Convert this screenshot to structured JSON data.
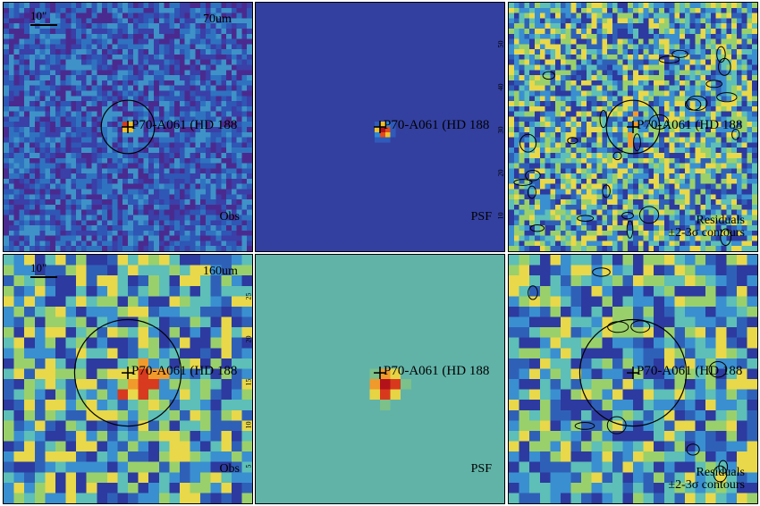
{
  "rows": [
    {
      "band": "70um",
      "scalebar": "10\"",
      "target_label": "P70-A061 (HD 188",
      "panels": [
        {
          "id": "obs",
          "corner_text": [
            "Obs"
          ],
          "palette": "obs70",
          "circle": true,
          "contours": false
        },
        {
          "id": "psf",
          "corner_text": [
            "PSF"
          ],
          "palette": "psf70",
          "circle": false,
          "contours": false,
          "ticks": [
            "10",
            "20",
            "30",
            "40",
            "50"
          ]
        },
        {
          "id": "res",
          "corner_text": [
            "Residuals",
            "±2-3σ contours"
          ],
          "palette": "res",
          "circle": true,
          "contours": true
        }
      ]
    },
    {
      "band": "160um",
      "scalebar": "10\"",
      "target_label": "P70-A061 (HD 188",
      "panels": [
        {
          "id": "obs",
          "corner_text": [
            "Obs"
          ],
          "palette": "res",
          "circle": true,
          "contours": false,
          "ticks": [
            "5",
            "10",
            "15",
            "20",
            "25"
          ]
        },
        {
          "id": "psf",
          "corner_text": [
            "PSF"
          ],
          "palette": "psf160",
          "circle": false,
          "contours": false
        },
        {
          "id": "res",
          "corner_text": [
            "Residuals",
            "±2-3σ contours"
          ],
          "palette": "res",
          "circle": true,
          "contours": true
        }
      ]
    }
  ],
  "colors": {
    "obs70": [
      "#4b2a8f",
      "#3b3fa8",
      "#2f57b5",
      "#2f73c0",
      "#3e92c8"
    ],
    "psf70": [
      "#3340a0",
      "#2f5bbb",
      "#2b87d6",
      "#f0c02a",
      "#e24a1c",
      "#b0121a"
    ],
    "res": [
      "#2d3aa0",
      "#2f60b8",
      "#3a8fd0",
      "#5dbfb7",
      "#9ad06b",
      "#e8d84a",
      "#f19a2c",
      "#d73a1f"
    ],
    "psf160": [
      "#61b3a8",
      "#7cc08a",
      "#e6d444",
      "#f09a2c",
      "#d8391d",
      "#b3121a"
    ]
  }
}
